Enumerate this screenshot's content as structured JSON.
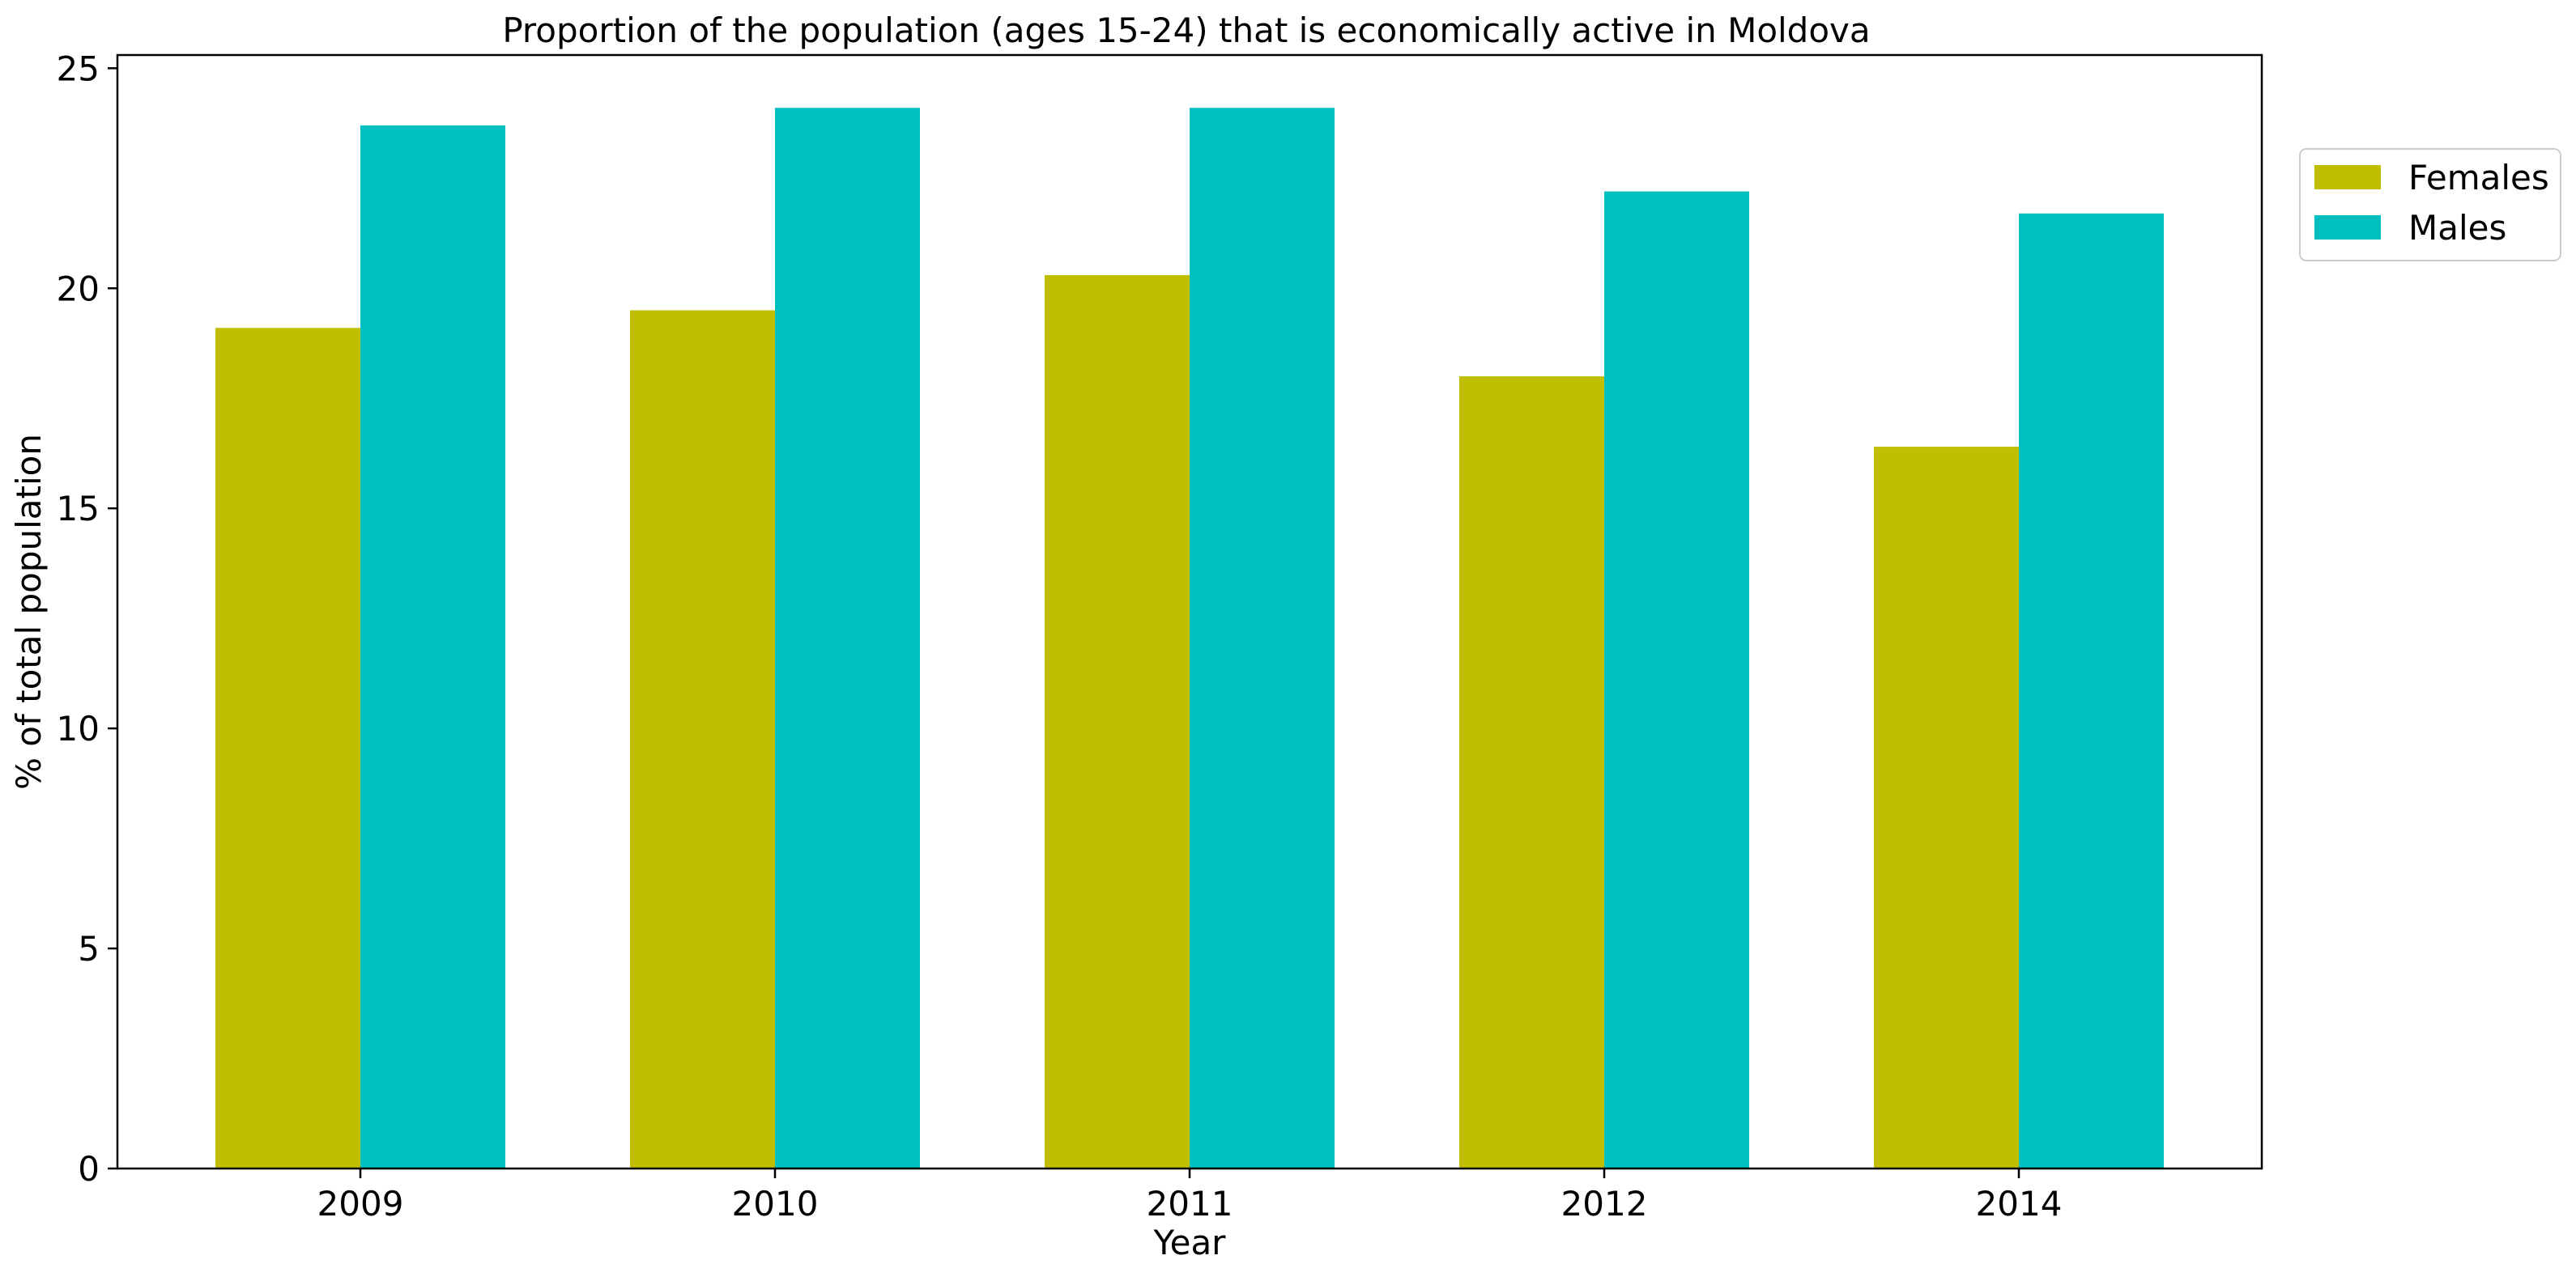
{
  "chart_data": {
    "type": "bar",
    "title": "Proportion of the population (ages 15-24) that is economically active in Moldova",
    "xlabel": "Year",
    "ylabel": "% of total population",
    "categories": [
      "2009",
      "2010",
      "2011",
      "2012",
      "2014"
    ],
    "series": [
      {
        "name": "Females",
        "color": "#bfbf00",
        "values": [
          19.1,
          19.5,
          20.3,
          18.0,
          16.4
        ]
      },
      {
        "name": "Males",
        "color": "#00bfbf",
        "values": [
          23.7,
          24.1,
          24.1,
          22.2,
          21.7
        ]
      }
    ],
    "ylim": [
      0,
      25.3
    ],
    "yticks": [
      0,
      5,
      10,
      15,
      20,
      25
    ],
    "grid": false,
    "legend_position": "upper-right-outside"
  }
}
